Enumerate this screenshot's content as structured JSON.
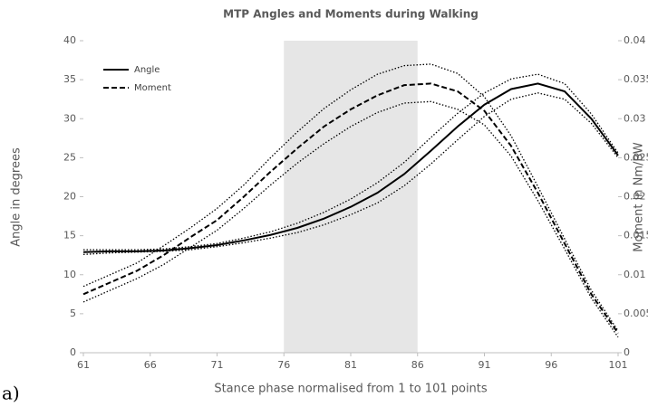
{
  "chart_data": {
    "type": "line",
    "title": "MTP Angles and Moments during Walking",
    "xlabel": "Stance phase normalised from 1 to 101 points",
    "ylabel": "Angle in degrees",
    "y2label": "Moment in Nm/BW",
    "annotation": "a)",
    "shaded_region": [
      76,
      86
    ],
    "shade_color": "#e6e6e6",
    "legend": "upper left",
    "x": [
      61,
      63,
      65,
      67,
      69,
      71,
      73,
      75,
      77,
      79,
      81,
      83,
      85,
      87,
      89,
      91,
      93,
      95,
      97,
      99,
      101
    ],
    "xlim": [
      61,
      101
    ],
    "xticks": [
      61,
      66,
      71,
      76,
      81,
      86,
      91,
      96,
      101
    ],
    "ylim": [
      0,
      40
    ],
    "yticks": [
      0,
      5,
      10,
      15,
      20,
      25,
      30,
      35,
      40
    ],
    "y2lim": [
      0,
      0.04
    ],
    "y2ticks": [
      0,
      0.005,
      0.01,
      0.015,
      0.02,
      0.025,
      0.03,
      0.035,
      0.04
    ],
    "series": [
      {
        "name": "Angle",
        "color": "#000000",
        "style": "solid",
        "axis": "y",
        "values": [
          12.9,
          13.0,
          13.0,
          13.1,
          13.4,
          13.8,
          14.4,
          15.1,
          16.0,
          17.2,
          18.7,
          20.5,
          22.9,
          25.9,
          29.0,
          31.8,
          33.8,
          34.5,
          33.5,
          30.0,
          25.3
        ],
        "upper": [
          13.2,
          13.2,
          13.2,
          13.3,
          13.6,
          14.0,
          14.7,
          15.5,
          16.6,
          18.0,
          19.7,
          21.8,
          24.4,
          27.6,
          30.7,
          33.3,
          35.1,
          35.7,
          34.5,
          30.6,
          25.6
        ],
        "lower": [
          12.6,
          12.8,
          12.9,
          13.0,
          13.2,
          13.6,
          14.1,
          14.7,
          15.4,
          16.4,
          17.7,
          19.2,
          21.4,
          24.2,
          27.3,
          30.3,
          32.5,
          33.3,
          32.5,
          29.4,
          25.0
        ]
      },
      {
        "name": "Moment",
        "color": "#000000",
        "style": "dashed",
        "axis": "y2",
        "values": [
          0.0075,
          0.009,
          0.0105,
          0.0125,
          0.0148,
          0.017,
          0.02,
          0.0232,
          0.0262,
          0.029,
          0.0312,
          0.033,
          0.0343,
          0.0345,
          0.0335,
          0.031,
          0.0265,
          0.0205,
          0.014,
          0.0075,
          0.0025
        ],
        "upper": [
          0.0085,
          0.01,
          0.0115,
          0.0137,
          0.016,
          0.0185,
          0.0215,
          0.025,
          0.0283,
          0.0313,
          0.0337,
          0.0357,
          0.0368,
          0.037,
          0.0358,
          0.0328,
          0.0278,
          0.0213,
          0.0146,
          0.008,
          0.0028
        ],
        "lower": [
          0.0065,
          0.008,
          0.0095,
          0.0113,
          0.0135,
          0.0157,
          0.0185,
          0.0215,
          0.0243,
          0.0268,
          0.029,
          0.0308,
          0.032,
          0.0322,
          0.0312,
          0.0292,
          0.0252,
          0.0195,
          0.0133,
          0.007,
          0.002
        ]
      }
    ]
  }
}
